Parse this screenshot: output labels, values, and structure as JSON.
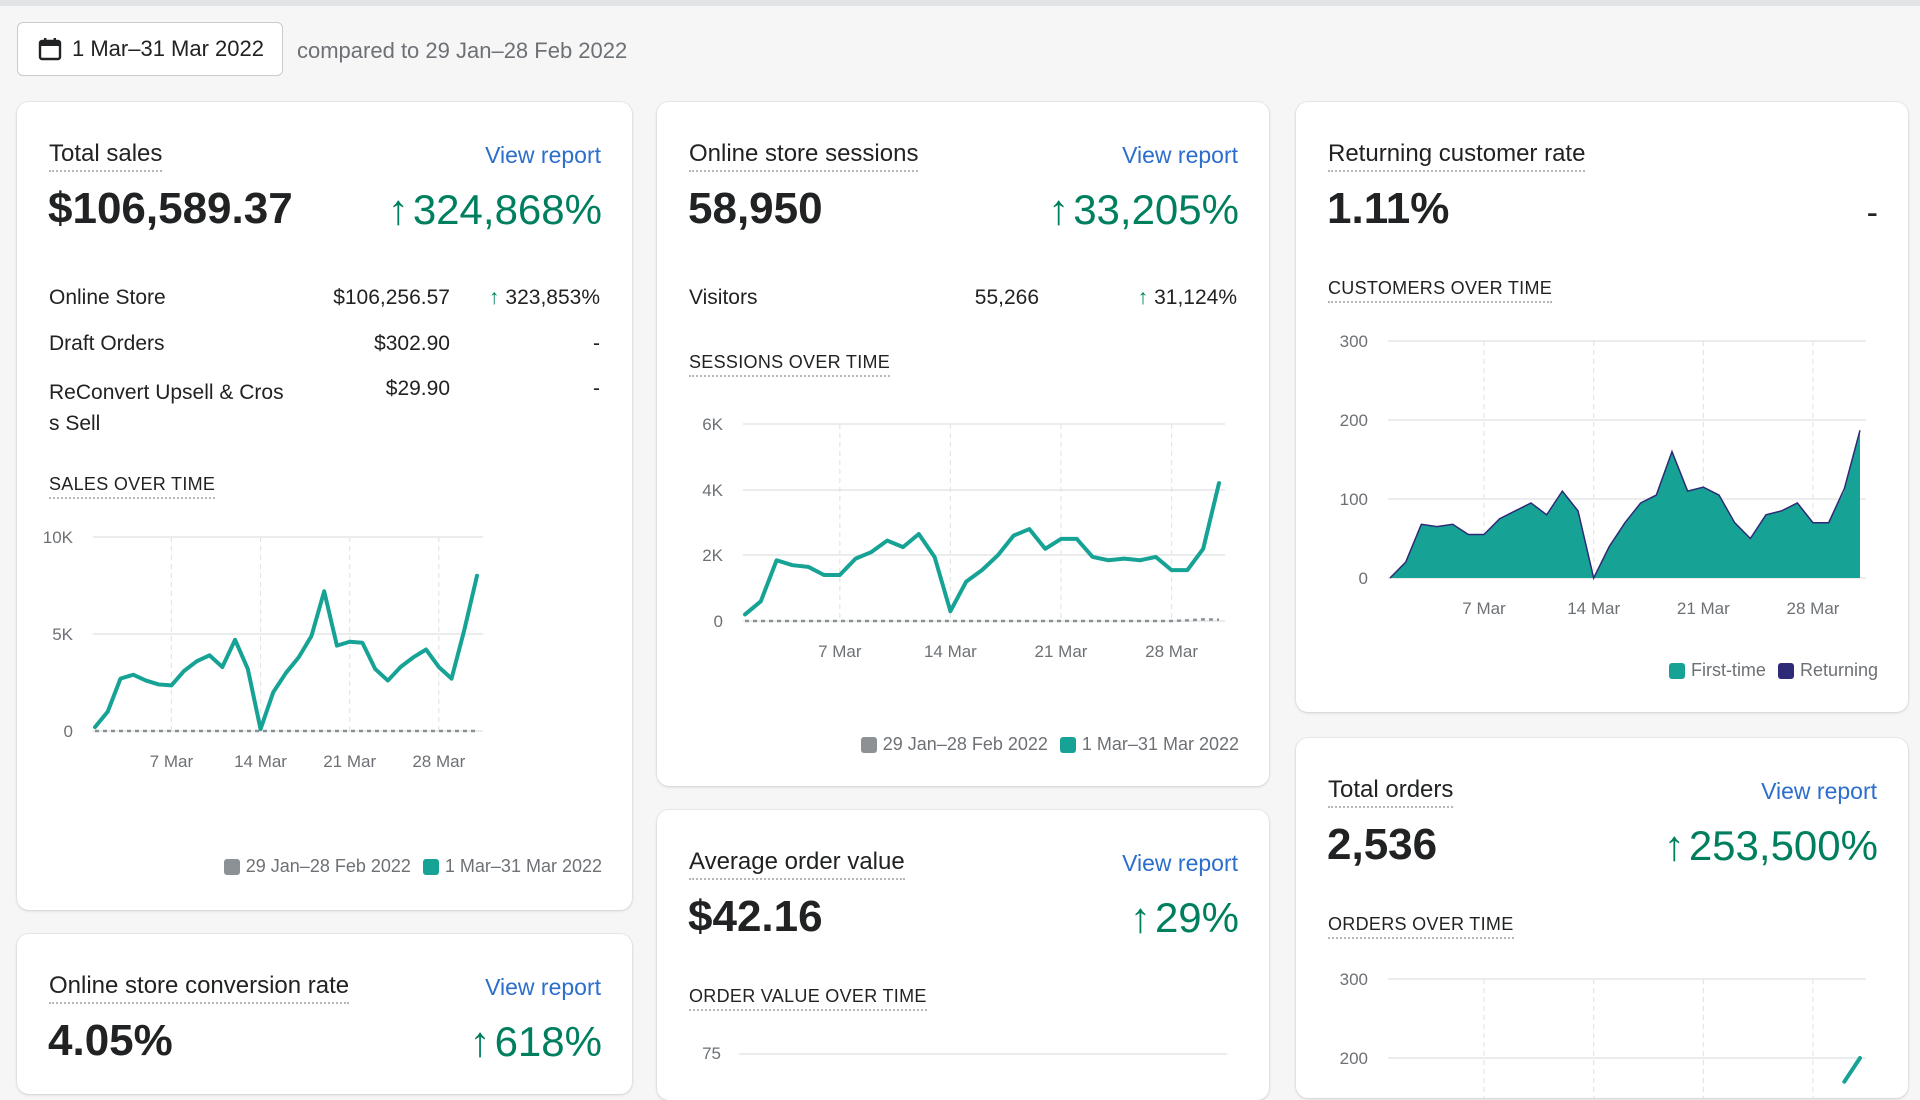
{
  "header": {
    "date_range": "1 Mar–31 Mar 2022",
    "compared_to": "compared to 29 Jan–28 Feb 2022",
    "calendar_icon": "calendar-icon"
  },
  "legend": {
    "previous": "29 Jan–28 Feb 2022",
    "current": "1 Mar–31 Mar 2022",
    "first_time": "First-time",
    "returning": "Returning"
  },
  "colors": {
    "accent_teal": "#16a395",
    "returning_navy": "#2e2a77",
    "previous_gray": "#8c9196",
    "link_blue": "#2c6ecb",
    "positive_green": "#007f5f"
  },
  "x_ticks": [
    "7 Mar",
    "14 Mar",
    "21 Mar",
    "28 Mar"
  ],
  "total_sales": {
    "title": "Total sales",
    "link": "View report",
    "value": "$106,589.37",
    "change": "324,868%",
    "rows": [
      {
        "label": "Online Store",
        "value": "$106,256.57",
        "change": "323,853%",
        "up": true
      },
      {
        "label": "Draft Orders",
        "value": "$302.90",
        "change": "-",
        "up": false
      },
      {
        "label": "ReConvert Upsell & Cros",
        "label2": "s Sell",
        "value": "$29.90",
        "change": "-",
        "up": false
      }
    ],
    "section_label": "SALES OVER TIME",
    "y_ticks": [
      "10K",
      "5K",
      "0"
    ]
  },
  "sessions": {
    "title": "Online store sessions",
    "link": "View report",
    "value": "58,950",
    "change": "33,205%",
    "rows": [
      {
        "label": "Visitors",
        "value": "55,266",
        "change": "31,124%",
        "up": true
      }
    ],
    "section_label": "SESSIONS OVER TIME",
    "y_ticks": [
      "6K",
      "4K",
      "2K",
      "0"
    ]
  },
  "returning_rate": {
    "title": "Returning customer rate",
    "value": "1.11%",
    "change": "-",
    "section_label": "CUSTOMERS OVER TIME",
    "y_ticks": [
      "300",
      "200",
      "100",
      "0"
    ]
  },
  "conversion": {
    "title": "Online store conversion rate",
    "link": "View report",
    "value": "4.05%",
    "change": "618%"
  },
  "aov": {
    "title": "Average order value",
    "link": "View report",
    "value": "$42.16",
    "change": "29%",
    "section_label": "ORDER VALUE OVER TIME",
    "y_ticks": [
      "75"
    ]
  },
  "total_orders": {
    "title": "Total orders",
    "link": "View report",
    "value": "2,536",
    "change": "253,500%",
    "section_label": "ORDERS OVER TIME",
    "y_ticks": [
      "300",
      "200"
    ]
  },
  "chart_data": [
    {
      "type": "line",
      "id": "sales",
      "x": [
        1,
        2,
        3,
        4,
        5,
        6,
        7,
        8,
        9,
        10,
        11,
        12,
        13,
        14,
        15,
        16,
        17,
        18,
        19,
        20,
        21,
        22,
        23,
        24,
        25,
        26,
        27,
        28,
        29,
        30,
        31
      ],
      "series": [
        {
          "name": "1 Mar–31 Mar 2022",
          "values": [
            200,
            1000,
            2700,
            2900,
            2600,
            2400,
            2350,
            3100,
            3600,
            3900,
            3300,
            4700,
            3200,
            100,
            2000,
            3000,
            3800,
            4900,
            7200,
            4400,
            4600,
            4550,
            3200,
            2600,
            3300,
            3800,
            4200,
            3300,
            2700,
            5200,
            8000
          ]
        },
        {
          "name": "29 Jan–28 Feb 2022",
          "values": [
            0,
            0,
            0,
            0,
            0,
            0,
            0,
            0,
            0,
            0,
            0,
            0,
            0,
            0,
            0,
            0,
            0,
            0,
            0,
            0,
            0,
            0,
            0,
            0,
            0,
            0,
            0,
            0,
            0,
            0,
            0
          ]
        }
      ],
      "ylim": [
        0,
        10000
      ]
    },
    {
      "type": "line",
      "id": "sessions",
      "x": [
        1,
        2,
        3,
        4,
        5,
        6,
        7,
        8,
        9,
        10,
        11,
        12,
        13,
        14,
        15,
        16,
        17,
        18,
        19,
        20,
        21,
        22,
        23,
        24,
        25,
        26,
        27,
        28,
        29,
        30,
        31
      ],
      "series": [
        {
          "name": "1 Mar–31 Mar 2022",
          "values": [
            200,
            600,
            1850,
            1700,
            1650,
            1400,
            1400,
            1900,
            2100,
            2450,
            2250,
            2650,
            1950,
            300,
            1200,
            1550,
            2000,
            2600,
            2800,
            2200,
            2500,
            2500,
            1950,
            1850,
            1900,
            1850,
            1950,
            1550,
            1550,
            2200,
            4200
          ]
        },
        {
          "name": "29 Jan–28 Feb 2022",
          "values": [
            0,
            0,
            0,
            0,
            0,
            0,
            0,
            0,
            0,
            0,
            0,
            0,
            0,
            0,
            0,
            0,
            0,
            0,
            0,
            0,
            0,
            0,
            0,
            0,
            0,
            0,
            0,
            0,
            20,
            50,
            40
          ]
        }
      ],
      "ylim": [
        0,
        6000
      ]
    },
    {
      "type": "area",
      "id": "customers",
      "x": [
        1,
        2,
        3,
        4,
        5,
        6,
        7,
        8,
        9,
        10,
        11,
        12,
        13,
        14,
        15,
        16,
        17,
        18,
        19,
        20,
        21,
        22,
        23,
        24,
        25,
        26,
        27,
        28,
        29,
        30,
        31
      ],
      "series": [
        {
          "name": "First-time",
          "values": [
            0,
            20,
            68,
            65,
            68,
            55,
            55,
            75,
            85,
            95,
            80,
            110,
            85,
            0,
            40,
            70,
            95,
            105,
            160,
            110,
            115,
            105,
            70,
            50,
            80,
            85,
            95,
            70,
            70,
            110,
            185
          ]
        },
        {
          "name": "Returning",
          "values": [
            0,
            0,
            0,
            0,
            0,
            0,
            0,
            0,
            0,
            0,
            0,
            0,
            0,
            0,
            0,
            0,
            0,
            0,
            0,
            0,
            0,
            0,
            0,
            0,
            0,
            0,
            0,
            0,
            0,
            3,
            2
          ]
        }
      ],
      "ylim": [
        0,
        300
      ]
    },
    {
      "type": "line",
      "id": "orders",
      "x": [
        1,
        2,
        3,
        4,
        5,
        6,
        7,
        8,
        9,
        10,
        11,
        12,
        13,
        14,
        15,
        16,
        17,
        18,
        19,
        20,
        21,
        22,
        23,
        24,
        25,
        26,
        27,
        28,
        29,
        30,
        31
      ],
      "series": [
        {
          "name": "1 Mar–31 Mar 2022",
          "values": [
            null,
            null,
            null,
            null,
            null,
            null,
            null,
            null,
            null,
            null,
            null,
            null,
            null,
            null,
            null,
            null,
            null,
            null,
            null,
            null,
            null,
            null,
            null,
            null,
            null,
            null,
            null,
            null,
            null,
            170,
            200
          ]
        }
      ],
      "ylim": [
        0,
        300
      ]
    }
  ]
}
